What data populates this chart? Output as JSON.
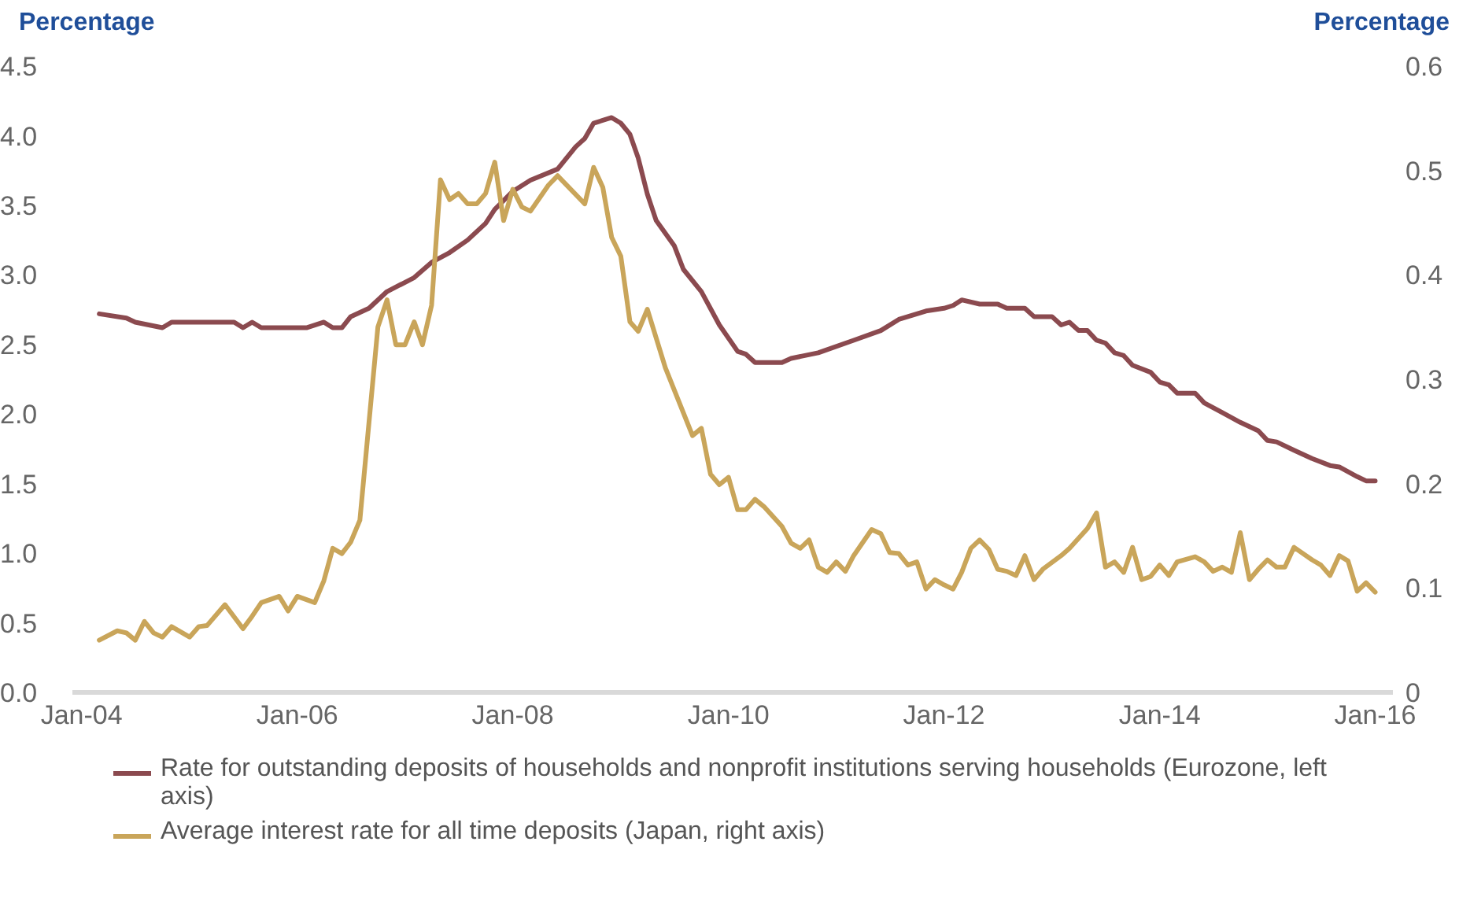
{
  "chart_data": {
    "type": "line",
    "ylabel": "Percentage",
    "y2label": "Percentage",
    "xlim": [
      "2003-12",
      "2016-03"
    ],
    "xticks": [
      {
        "value": "2004-01",
        "label": "Jan-04"
      },
      {
        "value": "2006-01",
        "label": "Jan-06"
      },
      {
        "value": "2008-01",
        "label": "Jan-08"
      },
      {
        "value": "2010-01",
        "label": "Jan-10"
      },
      {
        "value": "2012-01",
        "label": "Jan-12"
      },
      {
        "value": "2014-01",
        "label": "Jan-14"
      },
      {
        "value": "2016-01",
        "label": "Jan-16"
      }
    ],
    "ylim": [
      0,
      4.5
    ],
    "yticks": [
      {
        "value": 0,
        "label": "0.0"
      },
      0.5,
      {
        "value": 1,
        "label": "1.0"
      },
      1.5,
      {
        "value": 2,
        "label": "2.0"
      },
      2.5,
      {
        "value": 3,
        "label": "3.0"
      },
      3.5,
      {
        "value": 4,
        "label": "4.0"
      },
      4.5
    ],
    "y2lim": [
      0,
      0.6
    ],
    "y2ticks": [
      0,
      0.1,
      0.2,
      0.3,
      0.4,
      0.5,
      0.6
    ],
    "legend": "bottom",
    "series": [
      {
        "name": "Rate for outstanding deposits of households and nonprofit institutions serving households (Eurozone, left axis)",
        "color": "#8b4a4f",
        "x": [
          "2004-03",
          "2004-06",
          "2004-07",
          "2004-10",
          "2004-11",
          "2005-06",
          "2005-07",
          "2005-08",
          "2005-09",
          "2006-02",
          "2006-04",
          "2006-05",
          "2006-06",
          "2006-07",
          "2006-09",
          "2006-11",
          "2007-02",
          "2007-04",
          "2007-06",
          "2007-08",
          "2007-10",
          "2007-11",
          "2008-01",
          "2008-03",
          "2008-06",
          "2008-08",
          "2008-09",
          "2008-10",
          "2008-12",
          "2009-01",
          "2009-02",
          "2009-03",
          "2009-04",
          "2009-05",
          "2009-07",
          "2009-08",
          "2009-10",
          "2009-12",
          "2010-02",
          "2010-03",
          "2010-04",
          "2010-07",
          "2010-08",
          "2010-11",
          "2011-03",
          "2011-06",
          "2011-08",
          "2011-11",
          "2012-01",
          "2012-02",
          "2012-03",
          "2012-05",
          "2012-07",
          "2012-08",
          "2012-10",
          "2012-11",
          "2013-01",
          "2013-02",
          "2013-03",
          "2013-04",
          "2013-05",
          "2013-06",
          "2013-07",
          "2013-08",
          "2013-09",
          "2013-10",
          "2013-12",
          "2014-01",
          "2014-02",
          "2014-03",
          "2014-05",
          "2014-06",
          "2014-08",
          "2014-10",
          "2014-12",
          "2015-01",
          "2015-02",
          "2015-04",
          "2015-06",
          "2015-08",
          "2015-09",
          "2015-11",
          "2015-12",
          "2016-01"
        ],
        "values": [
          2.72,
          2.69,
          2.66,
          2.62,
          2.66,
          2.66,
          2.62,
          2.66,
          2.62,
          2.62,
          2.66,
          2.62,
          2.62,
          2.7,
          2.76,
          2.88,
          2.98,
          3.09,
          3.16,
          3.25,
          3.37,
          3.47,
          3.6,
          3.68,
          3.76,
          3.92,
          3.98,
          4.09,
          4.13,
          4.09,
          4.01,
          3.84,
          3.58,
          3.39,
          3.21,
          3.04,
          2.88,
          2.64,
          2.45,
          2.43,
          2.37,
          2.37,
          2.4,
          2.44,
          2.53,
          2.6,
          2.68,
          2.74,
          2.76,
          2.78,
          2.82,
          2.79,
          2.79,
          2.76,
          2.76,
          2.7,
          2.7,
          2.64,
          2.66,
          2.6,
          2.6,
          2.53,
          2.51,
          2.44,
          2.42,
          2.35,
          2.3,
          2.23,
          2.21,
          2.15,
          2.15,
          2.08,
          2.01,
          1.94,
          1.88,
          1.81,
          1.8,
          1.74,
          1.68,
          1.63,
          1.62,
          1.55,
          1.52,
          1.52
        ]
      },
      {
        "name": "Average interest rate for all time deposits (Japan, right axis)",
        "color": "#c9a55a",
        "axis": "y2",
        "x": [
          "2004-03",
          "2004-05",
          "2004-06",
          "2004-07",
          "2004-08",
          "2004-09",
          "2004-10",
          "2004-11",
          "2005-01",
          "2005-02",
          "2005-03",
          "2005-05",
          "2005-07",
          "2005-08",
          "2005-09",
          "2005-11",
          "2005-12",
          "2006-01",
          "2006-03",
          "2006-04",
          "2006-05",
          "2006-06",
          "2006-07",
          "2006-08",
          "2006-09",
          "2006-10",
          "2006-11",
          "2006-12",
          "2007-01",
          "2007-02",
          "2007-03",
          "2007-04",
          "2007-05",
          "2007-06",
          "2007-07",
          "2007-08",
          "2007-09",
          "2007-10",
          "2007-11",
          "2007-12",
          "2008-01",
          "2008-02",
          "2008-03",
          "2008-05",
          "2008-06",
          "2008-09",
          "2008-10",
          "2008-11",
          "2008-12",
          "2009-01",
          "2009-02",
          "2009-03",
          "2009-04",
          "2009-06",
          "2009-09",
          "2009-10",
          "2009-11",
          "2009-12",
          "2010-01",
          "2010-02",
          "2010-03",
          "2010-04",
          "2010-05",
          "2010-07",
          "2010-08",
          "2010-09",
          "2010-10",
          "2010-11",
          "2010-12",
          "2011-01",
          "2011-02",
          "2011-03",
          "2011-05",
          "2011-06",
          "2011-07",
          "2011-08",
          "2011-09",
          "2011-10",
          "2011-11",
          "2011-12",
          "2012-01",
          "2012-02",
          "2012-03",
          "2012-04",
          "2012-05",
          "2012-06",
          "2012-07",
          "2012-08",
          "2012-09",
          "2012-10",
          "2012-11",
          "2012-12",
          "2013-02",
          "2013-03",
          "2013-05",
          "2013-06",
          "2013-07",
          "2013-08",
          "2013-09",
          "2013-10",
          "2013-11",
          "2013-12",
          "2014-01",
          "2014-02",
          "2014-03",
          "2014-05",
          "2014-06",
          "2014-07",
          "2014-08",
          "2014-09",
          "2014-10",
          "2014-11",
          "2014-12",
          "2015-01",
          "2015-02",
          "2015-03",
          "2015-04",
          "2015-06",
          "2015-07",
          "2015-08",
          "2015-09",
          "2015-10",
          "2015-11",
          "2015-12",
          "2016-01"
        ],
        "values": [
          0.05,
          0.059,
          0.057,
          0.05,
          0.068,
          0.057,
          0.053,
          0.063,
          0.053,
          0.063,
          0.064,
          0.084,
          0.061,
          0.073,
          0.086,
          0.092,
          0.078,
          0.092,
          0.086,
          0.107,
          0.138,
          0.133,
          0.144,
          0.165,
          0.259,
          0.35,
          0.376,
          0.333,
          0.333,
          0.355,
          0.333,
          0.371,
          0.491,
          0.472,
          0.478,
          0.468,
          0.468,
          0.478,
          0.508,
          0.452,
          0.482,
          0.465,
          0.461,
          0.486,
          0.495,
          0.468,
          0.503,
          0.484,
          0.436,
          0.418,
          0.355,
          0.346,
          0.367,
          0.311,
          0.246,
          0.253,
          0.209,
          0.199,
          0.206,
          0.175,
          0.175,
          0.185,
          0.178,
          0.159,
          0.143,
          0.138,
          0.146,
          0.12,
          0.115,
          0.125,
          0.116,
          0.131,
          0.156,
          0.152,
          0.134,
          0.133,
          0.122,
          0.125,
          0.099,
          0.108,
          0.103,
          0.099,
          0.115,
          0.138,
          0.146,
          0.137,
          0.118,
          0.116,
          0.112,
          0.131,
          0.108,
          0.118,
          0.131,
          0.138,
          0.157,
          0.172,
          0.12,
          0.125,
          0.115,
          0.139,
          0.108,
          0.111,
          0.122,
          0.112,
          0.125,
          0.13,
          0.125,
          0.116,
          0.12,
          0.115,
          0.153,
          0.108,
          0.118,
          0.127,
          0.12,
          0.12,
          0.139,
          0.127,
          0.122,
          0.112,
          0.131,
          0.126,
          0.097,
          0.105,
          0.096
        ]
      }
    ]
  }
}
